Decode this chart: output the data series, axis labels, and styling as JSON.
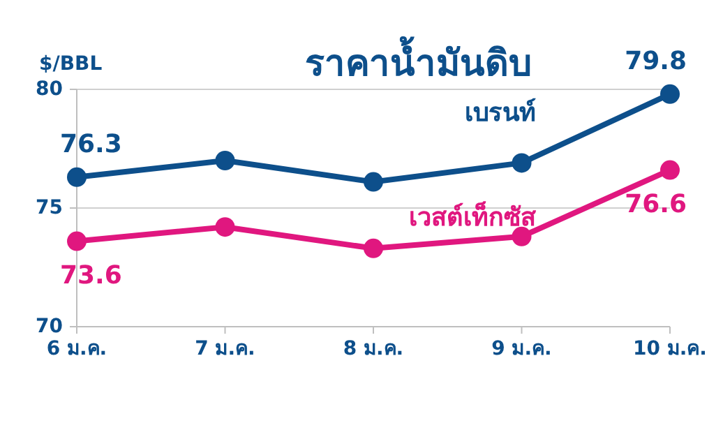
{
  "chart_data": {
    "type": "line",
    "title": "ราคาน้ำมันดิบ",
    "ylabel": "$/BBL",
    "categories": [
      "6 ม.ค.",
      "7 ม.ค.",
      "8 ม.ค.",
      "9 ม.ค.",
      "10 ม.ค."
    ],
    "series": [
      {
        "name": "เบรนท์",
        "color": "#0d4f8b",
        "values": [
          76.3,
          77.0,
          76.1,
          76.9,
          79.8
        ],
        "value_labels": [
          "76.3",
          null,
          null,
          null,
          "79.8"
        ]
      },
      {
        "name": "เวสต์เท็กซัส",
        "color": "#e0177f",
        "values": [
          73.6,
          74.2,
          73.3,
          73.8,
          76.6
        ],
        "value_labels": [
          "73.6",
          null,
          null,
          null,
          "76.6"
        ]
      }
    ],
    "ylim": [
      70,
      80
    ],
    "yticks": [
      70,
      75,
      80
    ],
    "grid": "y",
    "legend": false,
    "marker": "circle",
    "line_style": "solid"
  }
}
